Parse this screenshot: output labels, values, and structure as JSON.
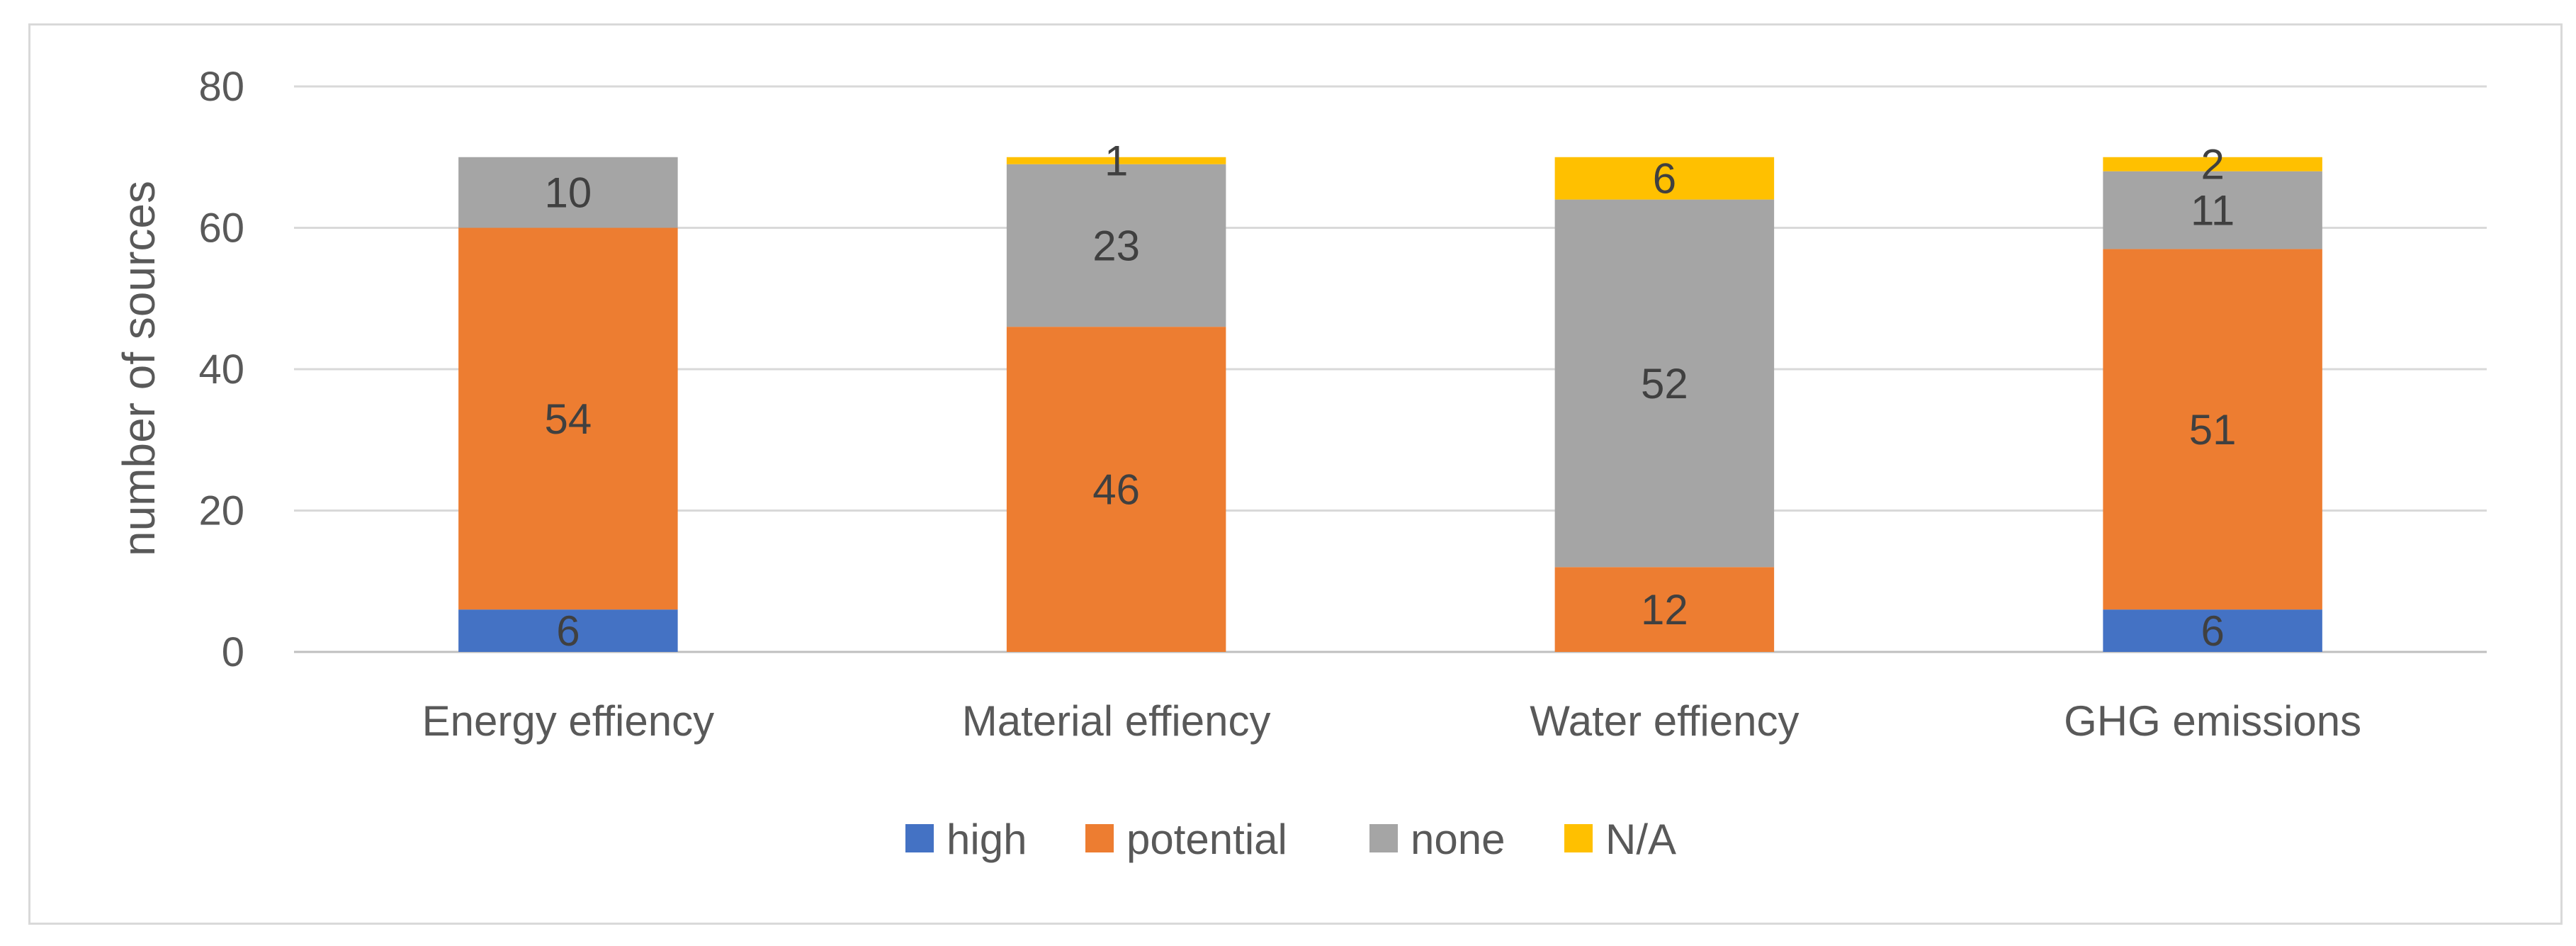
{
  "chart_data": {
    "type": "bar",
    "stacked": true,
    "title": "",
    "xlabel": "",
    "ylabel": "number of sources",
    "ylim": [
      0,
      80
    ],
    "yticks": [
      0,
      20,
      40,
      60,
      80
    ],
    "grid": true,
    "legend_position": "bottom",
    "categories": [
      "Energy effiency",
      "Material effiency",
      "Water effiency",
      "GHG emissions"
    ],
    "series": [
      {
        "name": "high",
        "color": "#4472c4",
        "values": [
          6,
          0,
          0,
          6
        ]
      },
      {
        "name": "potential",
        "color": "#ed7d31",
        "values": [
          54,
          46,
          12,
          51
        ]
      },
      {
        "name": "none",
        "color": "#a5a5a5",
        "values": [
          10,
          23,
          52,
          11
        ]
      },
      {
        "name": "N/A",
        "color": "#ffc000",
        "values": [
          0,
          1,
          6,
          2
        ]
      }
    ]
  }
}
